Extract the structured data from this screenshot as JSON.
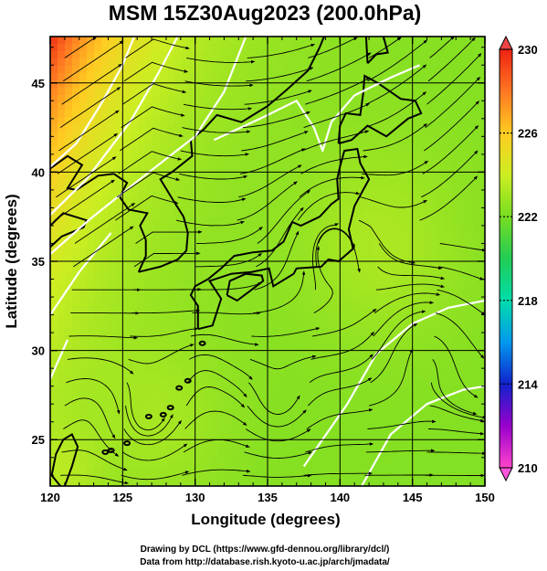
{
  "title": "MSM 15Z30Aug2023 (200.0hPa)",
  "x_axis": {
    "label": "Longitude (degrees)",
    "ticks": [
      120,
      125,
      130,
      135,
      140,
      145,
      150
    ],
    "range": [
      120,
      150
    ]
  },
  "y_axis": {
    "label": "Latitude  (degrees)",
    "ticks": [
      25,
      30,
      35,
      40,
      45
    ],
    "range": [
      22.4,
      47.6
    ]
  },
  "colorbar": {
    "ticks": [
      210,
      214,
      218,
      222,
      226,
      230
    ],
    "range": [
      210,
      230
    ],
    "colors": [
      "#ff44cc",
      "#9900cc",
      "#1122cc",
      "#0099ee",
      "#00ddaa",
      "#22cc55",
      "#77dd22",
      "#ccee22",
      "#ffcc22",
      "#ff7722",
      "#ee2211"
    ]
  },
  "map": {
    "field": "temperature",
    "grid": true,
    "features": [
      "coastlines",
      "streamlines",
      "white-contours"
    ]
  },
  "credits": [
    "Drawing by DCL (https://www.gfd-dennou.org/library/dcl/)",
    "Data from http://database.rish.kyoto-u.ac.jp/arch/jmadata/"
  ]
}
